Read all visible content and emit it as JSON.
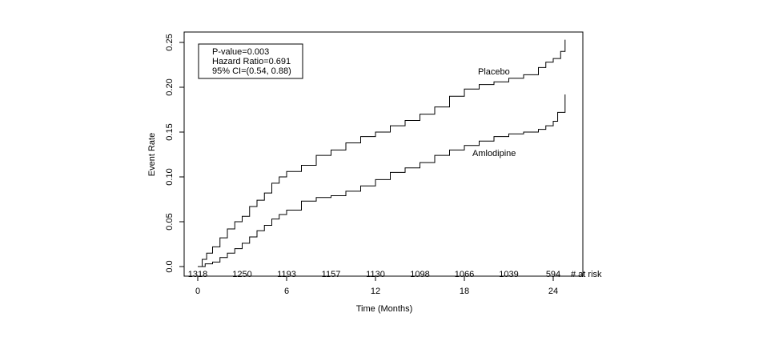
{
  "chart_data": {
    "type": "line",
    "step": true,
    "xlabel": "Time (Months)",
    "ylabel": "Event Rate",
    "xlim": [
      0,
      25
    ],
    "ylim": [
      0,
      0.26
    ],
    "x_ticks": [
      0,
      6,
      12,
      18,
      24
    ],
    "y_ticks": [
      {
        "value": 0.0,
        "label": "0.0"
      },
      {
        "value": 0.05,
        "label": "0.05"
      },
      {
        "value": 0.1,
        "label": "0.10"
      },
      {
        "value": 0.15,
        "label": "0.15"
      },
      {
        "value": 0.2,
        "label": "0.20"
      },
      {
        "value": 0.25,
        "label": "0.25"
      }
    ],
    "stats_box": {
      "line1": "P-value=0.003",
      "line2": "Hazard Ratio=0.691",
      "line3": "95% CI=(0.54, 0.88)"
    },
    "series": [
      {
        "name": "Placebo",
        "x": [
          0,
          0.3,
          0.6,
          1,
          1.5,
          2,
          2.5,
          3,
          3.5,
          4,
          4.5,
          5,
          5.5,
          6,
          7,
          8,
          9,
          10,
          11,
          12,
          13,
          14,
          15,
          16,
          17,
          18,
          19,
          20,
          21,
          22,
          23,
          23.5,
          24,
          24.5,
          24.8
        ],
        "y": [
          0,
          0.008,
          0.015,
          0.022,
          0.032,
          0.042,
          0.05,
          0.056,
          0.067,
          0.074,
          0.082,
          0.093,
          0.1,
          0.106,
          0.113,
          0.124,
          0.13,
          0.138,
          0.145,
          0.15,
          0.157,
          0.163,
          0.17,
          0.178,
          0.19,
          0.198,
          0.203,
          0.206,
          0.21,
          0.214,
          0.222,
          0.228,
          0.232,
          0.24,
          0.253
        ]
      },
      {
        "name": "Amlodipine",
        "x": [
          0,
          0.5,
          1,
          1.5,
          2,
          2.5,
          3,
          3.5,
          4,
          4.5,
          5,
          5.5,
          6,
          7,
          8,
          9,
          10,
          11,
          12,
          13,
          14,
          15,
          16,
          17,
          18,
          19,
          20,
          21,
          22,
          23,
          23.5,
          24,
          24.3,
          24.8
        ],
        "y": [
          0,
          0.003,
          0.005,
          0.01,
          0.015,
          0.02,
          0.026,
          0.033,
          0.04,
          0.046,
          0.053,
          0.058,
          0.063,
          0.073,
          0.077,
          0.079,
          0.084,
          0.09,
          0.097,
          0.105,
          0.11,
          0.116,
          0.124,
          0.13,
          0.135,
          0.14,
          0.145,
          0.148,
          0.15,
          0.153,
          0.157,
          0.162,
          0.172,
          0.192
        ]
      }
    ],
    "at_risk": {
      "x": [
        0,
        3,
        6,
        9,
        12,
        15,
        18,
        21,
        24
      ],
      "values": [
        "1318",
        "1250",
        "1193",
        "1157",
        "1130",
        "1098",
        "1066",
        "1039",
        "594"
      ],
      "label": "# at risk"
    }
  },
  "colors": {
    "line": "#000000",
    "axis": "#000000"
  }
}
